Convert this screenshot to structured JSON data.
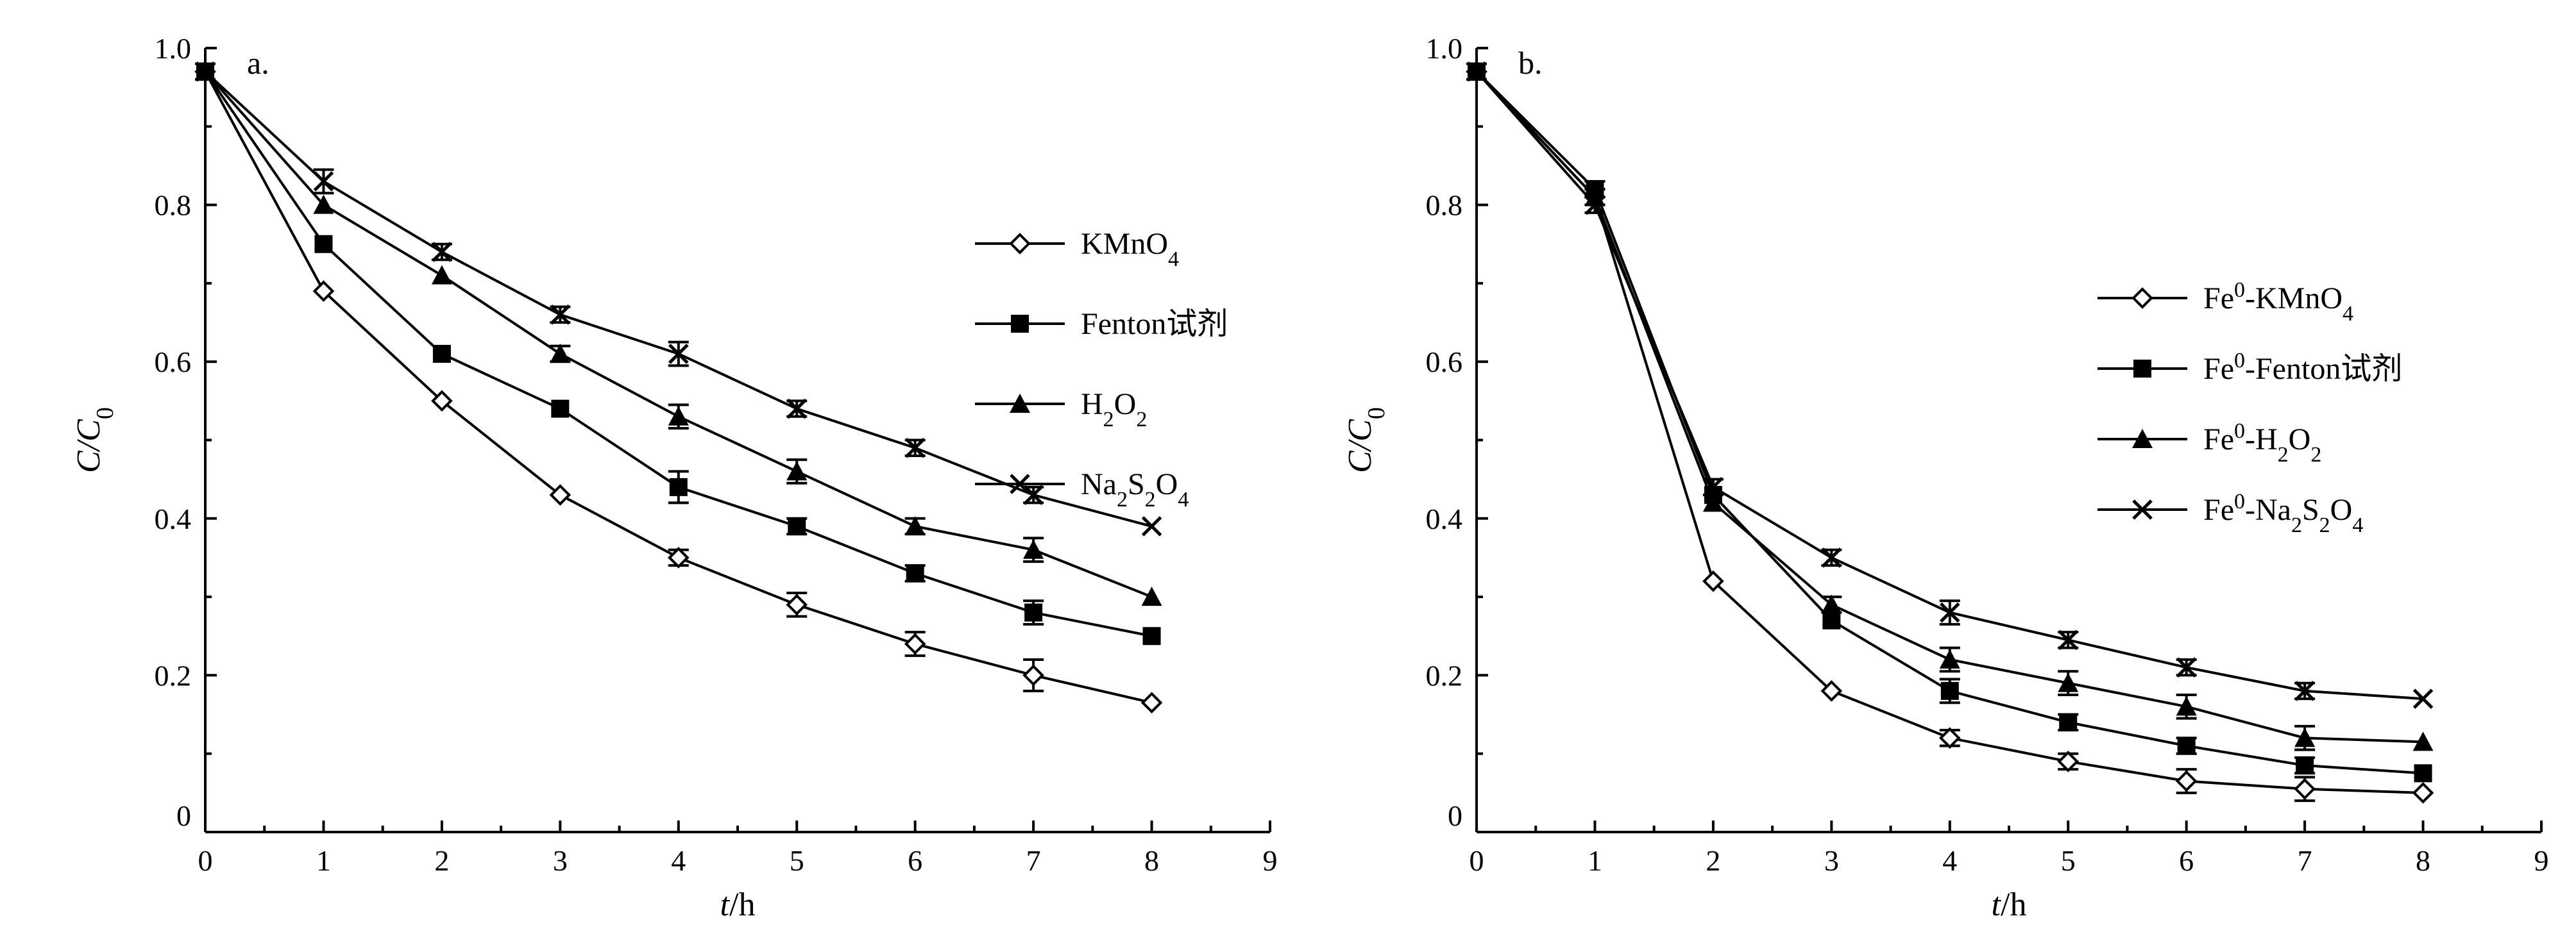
{
  "chart_data": [
    {
      "type": "line",
      "panel_label": "a.",
      "xlabel": "t/h",
      "ylabel": "C/C0",
      "xlim": [
        0,
        9
      ],
      "ylim": [
        0,
        1.0
      ],
      "x_ticks": [
        "0",
        "1",
        "2",
        "3",
        "4",
        "5",
        "6",
        "7",
        "8",
        "9"
      ],
      "y_ticks": [
        "0",
        "0.2",
        "0.4",
        "0.6",
        "0.8",
        "1.0"
      ],
      "x": [
        0,
        1,
        2,
        3,
        4,
        5,
        6,
        7,
        8
      ],
      "legend_position": "right",
      "series": [
        {
          "name": "KMnO4",
          "marker": "diamond-open",
          "values": [
            0.97,
            0.69,
            0.55,
            0.43,
            0.35,
            0.29,
            0.24,
            0.2,
            0.165
          ],
          "errors": [
            0.01,
            0.0,
            0.0,
            0.0,
            0.01,
            0.015,
            0.015,
            0.02,
            0.0
          ]
        },
        {
          "name": "Fenton试剂",
          "marker": "square-filled",
          "values": [
            0.97,
            0.75,
            0.61,
            0.54,
            0.44,
            0.39,
            0.33,
            0.28,
            0.25
          ],
          "errors": [
            0.01,
            0.0,
            0.0,
            0.0,
            0.02,
            0.01,
            0.01,
            0.015,
            0.0
          ]
        },
        {
          "name": "H2O2",
          "marker": "triangle-filled",
          "values": [
            0.97,
            0.8,
            0.71,
            0.61,
            0.53,
            0.46,
            0.39,
            0.36,
            0.3
          ],
          "errors": [
            0.01,
            0.0,
            0.0,
            0.01,
            0.015,
            0.015,
            0.01,
            0.015,
            0.0
          ]
        },
        {
          "name": "Na2S2O4",
          "marker": "x",
          "values": [
            0.97,
            0.83,
            0.74,
            0.66,
            0.61,
            0.54,
            0.49,
            0.43,
            0.39
          ],
          "errors": [
            0.01,
            0.015,
            0.01,
            0.01,
            0.015,
            0.01,
            0.01,
            0.01,
            0.0
          ]
        }
      ],
      "legend_labels": [
        {
          "base": "KMnO",
          "sub": "4",
          "rest": ""
        },
        {
          "base": "Fenton试剂",
          "sub": "",
          "rest": ""
        },
        {
          "base": "H",
          "sub": "2",
          "rest": "O",
          "sub2": "2"
        },
        {
          "base": "Na",
          "sub": "2",
          "rest": "S",
          "sub2": "2",
          "rest2": "O",
          "sub3": "4"
        }
      ]
    },
    {
      "type": "line",
      "panel_label": "b.",
      "xlabel": "t/h",
      "ylabel": "C/C0",
      "xlim": [
        0,
        9
      ],
      "ylim": [
        0,
        1.0
      ],
      "x_ticks": [
        "0",
        "1",
        "2",
        "3",
        "4",
        "5",
        "6",
        "7",
        "8",
        "9"
      ],
      "y_ticks": [
        "0",
        "0.2",
        "0.4",
        "0.6",
        "0.8",
        "1.0"
      ],
      "x": [
        0,
        1,
        2,
        3,
        4,
        5,
        6,
        7,
        8
      ],
      "legend_position": "right",
      "series": [
        {
          "name": "Fe0-KMnO4",
          "marker": "diamond-open",
          "values": [
            0.97,
            0.81,
            0.32,
            0.18,
            0.12,
            0.09,
            0.065,
            0.055,
            0.05
          ],
          "errors": [
            0.01,
            0.01,
            0.0,
            0.0,
            0.01,
            0.01,
            0.015,
            0.015,
            0.0
          ]
        },
        {
          "name": "Fe0-Fenton试剂",
          "marker": "square-filled",
          "values": [
            0.97,
            0.82,
            0.43,
            0.27,
            0.18,
            0.14,
            0.11,
            0.085,
            0.075
          ],
          "errors": [
            0.01,
            0.01,
            0.0,
            0.0,
            0.015,
            0.01,
            0.01,
            0.01,
            0.0
          ]
        },
        {
          "name": "Fe0-H2O2",
          "marker": "triangle-filled",
          "values": [
            0.97,
            0.81,
            0.42,
            0.29,
            0.22,
            0.19,
            0.16,
            0.12,
            0.115
          ],
          "errors": [
            0.01,
            0.01,
            0.0,
            0.01,
            0.015,
            0.015,
            0.015,
            0.015,
            0.0
          ]
        },
        {
          "name": "Fe0-Na2S2O4",
          "marker": "x",
          "values": [
            0.97,
            0.8,
            0.44,
            0.35,
            0.28,
            0.245,
            0.21,
            0.18,
            0.17
          ],
          "errors": [
            0.01,
            0.01,
            0.01,
            0.01,
            0.015,
            0.01,
            0.01,
            0.01,
            0.0
          ]
        }
      ],
      "legend_labels": [
        {
          "pre": "Fe",
          "sup": "0",
          "base": "-KMnO",
          "sub": "4",
          "rest": ""
        },
        {
          "pre": "Fe",
          "sup": "0",
          "base": "-Fenton试剂",
          "sub": "",
          "rest": ""
        },
        {
          "pre": "Fe",
          "sup": "0",
          "base": "-H",
          "sub": "2",
          "rest": "O",
          "sub2": "2"
        },
        {
          "pre": "Fe",
          "sup": "0",
          "base": "-Na",
          "sub": "2",
          "rest": "S",
          "sub2": "2",
          "rest2": "O",
          "sub3": "4"
        }
      ]
    }
  ]
}
